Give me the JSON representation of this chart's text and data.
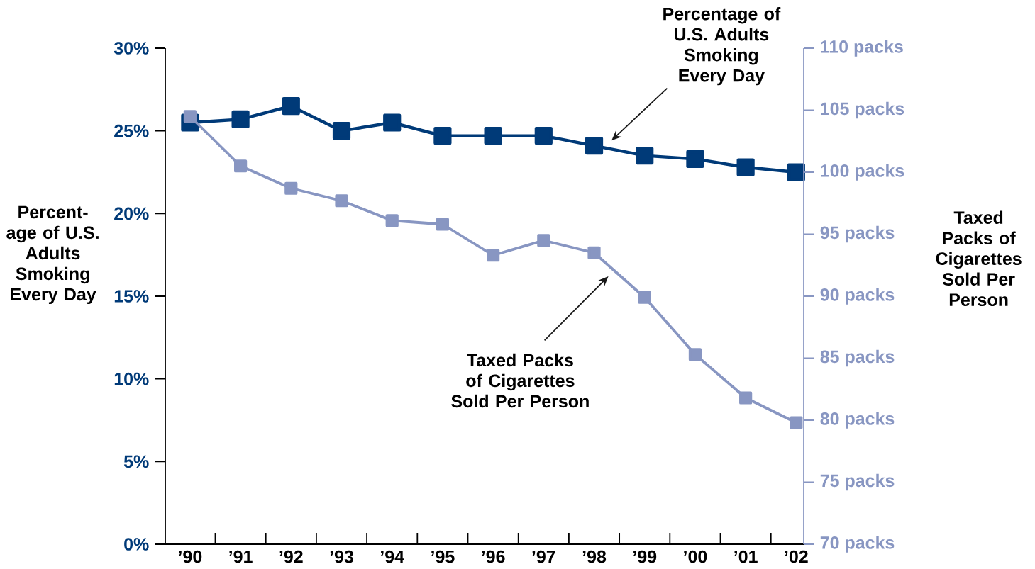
{
  "chart_data": {
    "type": "line",
    "categories": [
      "’90",
      "’91",
      "’92",
      "’93",
      "’94",
      "’95",
      "’96",
      "’97",
      "’98",
      "’99",
      "’00",
      "’01",
      "’02"
    ],
    "series": [
      {
        "color": "#003a78",
        "values": [
          25.5,
          25.7,
          26.5,
          25.0,
          25.5,
          24.7,
          24.7,
          24.7,
          24.1,
          23.5,
          23.3,
          22.8,
          22.5
        ]
      },
      {
        "color": "#8896c2",
        "axis": "y2",
        "values": [
          104.5,
          100.5,
          98.7,
          97.7,
          96.1,
          95.8,
          93.3,
          94.5,
          93.5,
          89.9,
          85.3,
          81.8,
          79.8
        ]
      }
    ],
    "ylabel": "Percent-age of U.S. Adults Smoking Every Day",
    "y2label": "Taxed Packs of Cigarettes Sold Per Person",
    "ylim": [
      0,
      30
    ],
    "yticks": [
      {
        "value": 0,
        "label": "0%"
      },
      {
        "value": 5,
        "label": "5%"
      },
      {
        "value": 10,
        "label": "10%"
      },
      {
        "value": 15,
        "label": "15%"
      },
      {
        "value": 20,
        "label": "20%"
      },
      {
        "value": 25,
        "label": "25%"
      },
      {
        "value": 30,
        "label": "30%"
      }
    ],
    "y2lim": [
      70,
      110
    ],
    "y2ticks": [
      {
        "value": 70,
        "label": "70 packs"
      },
      {
        "value": 75,
        "label": "75 packs"
      },
      {
        "value": 80,
        "label": "80 packs"
      },
      {
        "value": 85,
        "label": "85 packs"
      },
      {
        "value": 90,
        "label": "90 packs"
      },
      {
        "value": 95,
        "label": "95 packs"
      },
      {
        "value": 100,
        "label": "100 packs"
      },
      {
        "value": 105,
        "label": "105 packs"
      },
      {
        "value": 110,
        "label": "110 packs"
      }
    ],
    "annotations": [
      "Percentage of U.S. Adults Smoking Every Day",
      "Taxed Packs of Cigarettes Sold Per Person"
    ],
    "marker": "square",
    "line_style": "solid"
  }
}
